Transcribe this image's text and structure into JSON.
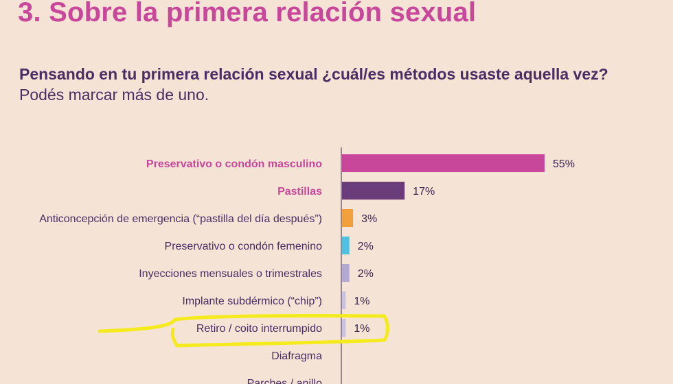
{
  "header": {
    "title": "3. Sobre la primera relación sexual",
    "question_bold": "Pensando en tu primera relación sexual ¿cuál/es métodos usaste aquella vez?",
    "question_rest": " Podés marcar más de uno."
  },
  "chart_data": {
    "type": "bar",
    "orientation": "horizontal",
    "categories": [
      "Preservativo o condón masculino",
      "Pastillas",
      "Anticoncepción de emergencia (“pastilla del día después”)",
      "Preservativo o condón femenino",
      "Inyecciones mensuales o trimestrales",
      "Implante subdérmico (“chip”)",
      "Retiro / coito interrumpido",
      "Diafragma",
      "Parches / anillo"
    ],
    "values": [
      55,
      17,
      3,
      2,
      2,
      1,
      1,
      0,
      0
    ],
    "value_labels": [
      "55%",
      "17%",
      "3%",
      "2%",
      "2%",
      "1%",
      "1%",
      "",
      ""
    ],
    "highlighted_categories": [
      0,
      1
    ],
    "bar_colors": [
      "#c8479b",
      "#6a3d7a",
      "#f2a03c",
      "#4fc0e2",
      "#b3a9d1",
      "#c9c2e0",
      "#c9c2e0",
      "#c9c2e0",
      "#c9c2e0"
    ],
    "label_highlight_color": "#c8479b",
    "label_color": "#4b2c63",
    "annotation": {
      "type": "yellow-marker-circle",
      "target_category_index": 6,
      "color": "#f5ea1e"
    },
    "xlim": [
      0,
      60
    ],
    "grid": false,
    "legend": "none"
  }
}
